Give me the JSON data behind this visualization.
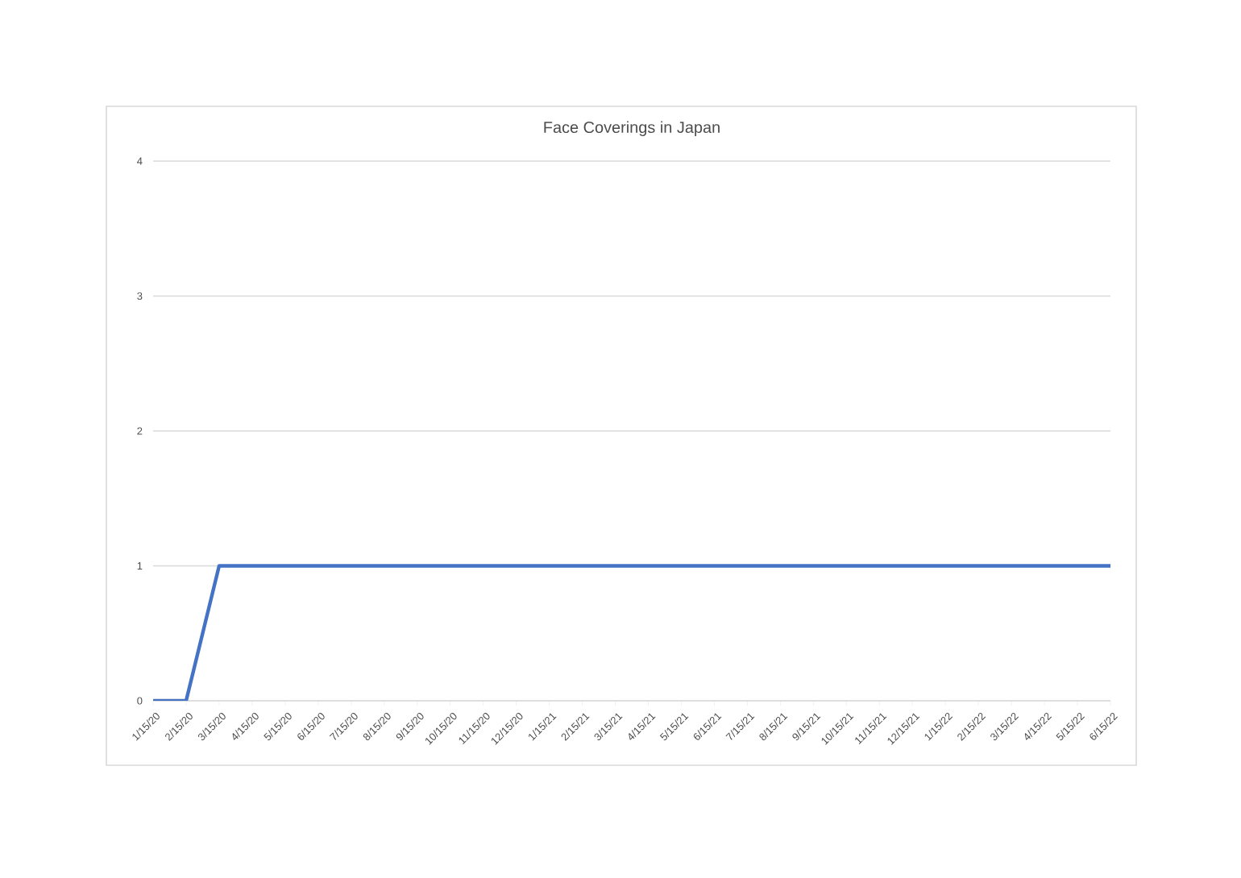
{
  "chart_data": {
    "type": "line",
    "title": "Face Coverings in Japan",
    "categories": [
      "1/15/20",
      "2/15/20",
      "3/15/20",
      "4/15/20",
      "5/15/20",
      "6/15/20",
      "7/15/20",
      "8/15/20",
      "9/15/20",
      "10/15/20",
      "11/15/20",
      "12/15/20",
      "1/15/21",
      "2/15/21",
      "3/15/21",
      "4/15/21",
      "5/15/21",
      "6/15/21",
      "7/15/21",
      "8/15/21",
      "9/15/21",
      "10/15/21",
      "11/15/21",
      "12/15/21",
      "1/15/22",
      "2/15/22",
      "3/15/22",
      "4/15/22",
      "5/15/22",
      "6/15/22"
    ],
    "values": [
      0,
      0,
      1,
      1,
      1,
      1,
      1,
      1,
      1,
      1,
      1,
      1,
      1,
      1,
      1,
      1,
      1,
      1,
      1,
      1,
      1,
      1,
      1,
      1,
      1,
      1,
      1,
      1,
      1,
      1
    ],
    "color": "#4472c4",
    "ylim": [
      0,
      4
    ],
    "yticks": [
      0,
      1,
      2,
      3,
      4
    ],
    "grid": "y",
    "marker": "none",
    "line_style": "solid"
  }
}
